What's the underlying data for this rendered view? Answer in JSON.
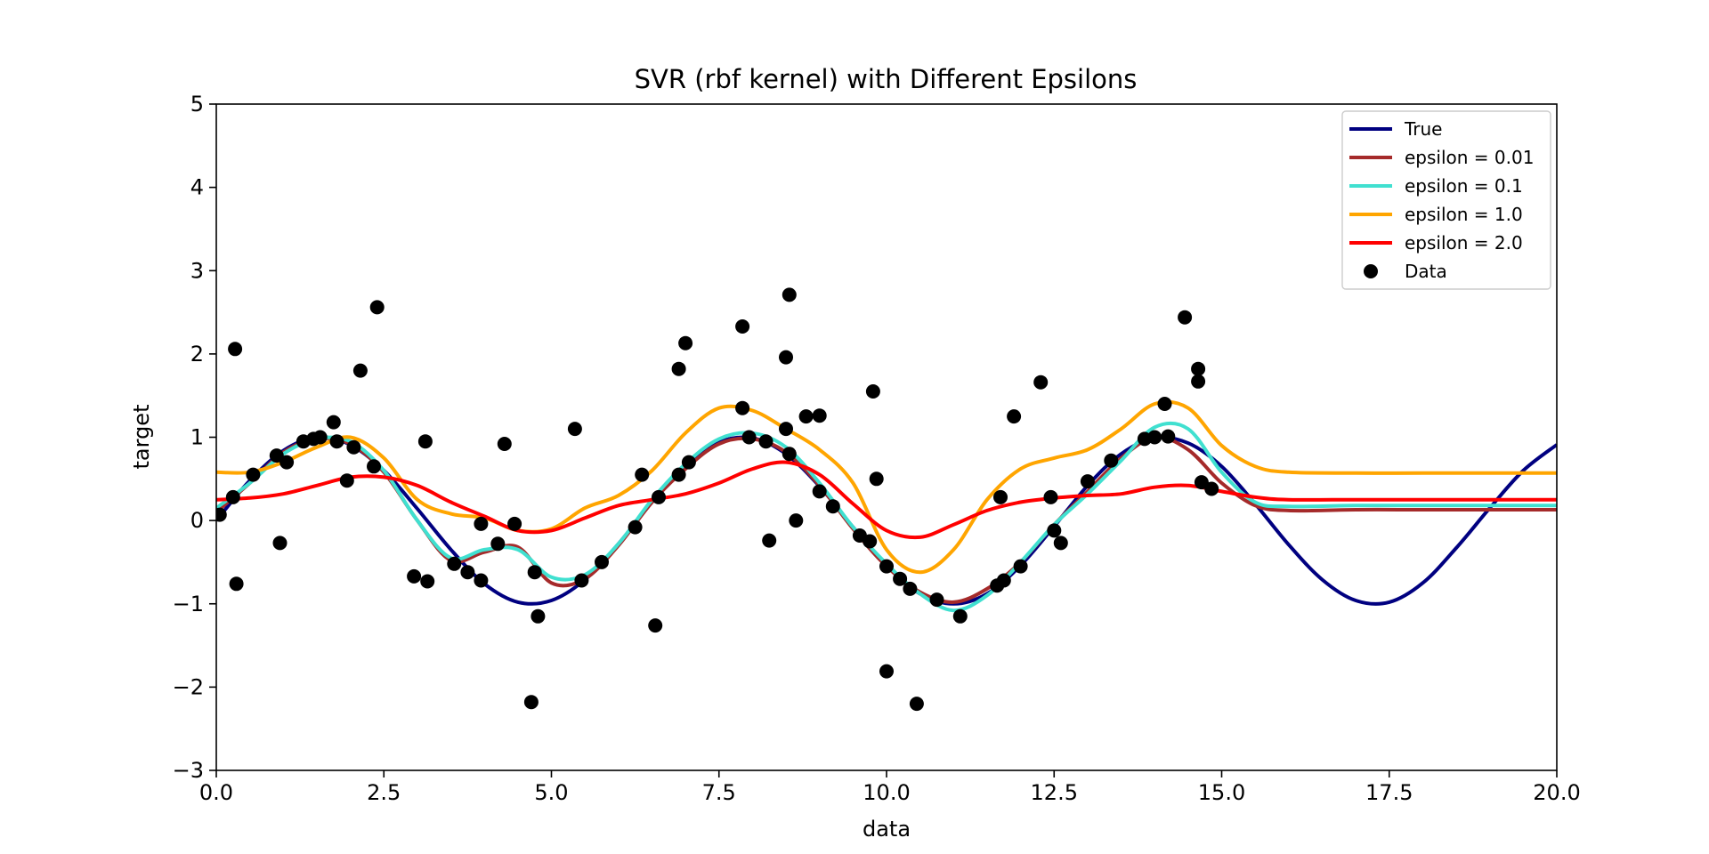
{
  "chart_data": {
    "type": "line",
    "title": "SVR (rbf kernel) with Different Epsilons",
    "xlabel": "data",
    "ylabel": "target",
    "xlim": [
      0,
      20
    ],
    "ylim": [
      -3,
      5
    ],
    "xticks": [
      0,
      2.5,
      5,
      7.5,
      10,
      12.5,
      15,
      17.5,
      20
    ],
    "xtick_labels": [
      "0.0",
      "2.5",
      "5.0",
      "7.5",
      "10.0",
      "12.5",
      "15.0",
      "17.5",
      "20.0"
    ],
    "yticks": [
      -3,
      -2,
      -1,
      0,
      1,
      2,
      3,
      4,
      5
    ],
    "ytick_labels": [
      "−3",
      "−2",
      "−1",
      "0",
      "1",
      "2",
      "3",
      "4",
      "5"
    ],
    "grid": false,
    "legend_position": "top-right",
    "series": [
      {
        "name": "True",
        "color": "#000080",
        "x": [
          0,
          0.5,
          1,
          1.5,
          2,
          2.5,
          3,
          3.5,
          4,
          4.5,
          5,
          5.5,
          6,
          6.5,
          7,
          7.5,
          8,
          8.5,
          9,
          9.5,
          10,
          10.5,
          11,
          11.5,
          12,
          12.5,
          13,
          13.5,
          14,
          14.5,
          15,
          15.5,
          16,
          16.5,
          17,
          17.5,
          18,
          18.5,
          19,
          19.5,
          20
        ],
        "y": [
          0,
          0.48,
          0.84,
          1.0,
          0.91,
          0.6,
          0.14,
          -0.35,
          -0.76,
          -0.98,
          -0.96,
          -0.71,
          -0.28,
          0.22,
          0.66,
          0.94,
          0.99,
          0.8,
          0.41,
          -0.08,
          -0.54,
          -0.88,
          -1.0,
          -0.88,
          -0.54,
          -0.07,
          0.42,
          0.8,
          0.99,
          0.93,
          0.65,
          0.2,
          -0.29,
          -0.71,
          -0.96,
          -0.98,
          -0.75,
          -0.33,
          0.15,
          0.6,
          0.91
        ]
      },
      {
        "name": "epsilon = 0.01",
        "color": "#A52A2A",
        "x": [
          0,
          0.5,
          1,
          1.5,
          2,
          2.5,
          3,
          3.5,
          4,
          4.5,
          5,
          5.5,
          6,
          6.5,
          7,
          7.5,
          8,
          8.5,
          9,
          9.5,
          10,
          10.5,
          11,
          11.5,
          12,
          12.5,
          13,
          13.5,
          14,
          14.5,
          15,
          15.5,
          16,
          17,
          18,
          19,
          20
        ],
        "y": [
          0.1,
          0.45,
          0.82,
          0.98,
          0.92,
          0.58,
          0.0,
          -0.48,
          -0.38,
          -0.32,
          -0.75,
          -0.7,
          -0.3,
          0.22,
          0.62,
          0.92,
          0.98,
          0.82,
          0.42,
          -0.1,
          -0.55,
          -0.86,
          -0.98,
          -0.82,
          -0.5,
          -0.05,
          0.35,
          0.75,
          1.0,
          0.85,
          0.45,
          0.18,
          0.12,
          0.13,
          0.13,
          0.13,
          0.13
        ]
      },
      {
        "name": "epsilon = 0.1",
        "color": "#40E0D0",
        "x": [
          0,
          0.5,
          1,
          1.5,
          2,
          2.5,
          3,
          3.5,
          4,
          4.5,
          5,
          5.5,
          6,
          6.5,
          7,
          7.5,
          8,
          8.5,
          9,
          9.5,
          10,
          10.5,
          11,
          11.5,
          12,
          12.5,
          13,
          13.5,
          14,
          14.5,
          15,
          15.5,
          16,
          17,
          18,
          19,
          20
        ],
        "y": [
          0.15,
          0.45,
          0.8,
          0.98,
          0.95,
          0.6,
          0.0,
          -0.45,
          -0.35,
          -0.35,
          -0.68,
          -0.65,
          -0.28,
          0.25,
          0.68,
          0.98,
          1.05,
          0.88,
          0.45,
          -0.08,
          -0.52,
          -0.88,
          -1.08,
          -0.9,
          -0.5,
          -0.05,
          0.32,
          0.72,
          1.12,
          1.1,
          0.58,
          0.22,
          0.17,
          0.18,
          0.18,
          0.18,
          0.18
        ]
      },
      {
        "name": "epsilon = 1.0",
        "color": "#FFA500",
        "x": [
          0,
          0.5,
          1,
          1.5,
          2,
          2.5,
          3,
          3.5,
          4,
          4.5,
          5,
          5.5,
          6,
          6.5,
          7,
          7.5,
          8,
          8.5,
          9,
          9.5,
          10,
          10.5,
          11,
          11.5,
          12,
          12.5,
          13,
          13.5,
          14,
          14.5,
          15,
          15.5,
          16,
          17,
          18,
          19,
          20
        ],
        "y": [
          0.58,
          0.58,
          0.7,
          0.88,
          1.0,
          0.75,
          0.25,
          0.08,
          0.03,
          -0.12,
          -0.1,
          0.15,
          0.3,
          0.6,
          1.05,
          1.35,
          1.32,
          1.1,
          0.85,
          0.45,
          -0.35,
          -0.62,
          -0.35,
          0.25,
          0.62,
          0.75,
          0.85,
          1.1,
          1.4,
          1.35,
          0.9,
          0.65,
          0.58,
          0.57,
          0.57,
          0.57,
          0.57
        ]
      },
      {
        "name": "epsilon = 2.0",
        "color": "#FF0000",
        "x": [
          0,
          0.5,
          1,
          1.5,
          2,
          2.5,
          3,
          3.5,
          4,
          4.5,
          5,
          5.5,
          6,
          6.5,
          7,
          7.5,
          8,
          8.5,
          9,
          9.5,
          10,
          10.5,
          11,
          11.5,
          12,
          12.5,
          13,
          13.5,
          14,
          14.5,
          15,
          15.5,
          16,
          17,
          18,
          19,
          20
        ],
        "y": [
          0.25,
          0.27,
          0.32,
          0.42,
          0.52,
          0.52,
          0.42,
          0.22,
          0.05,
          -0.12,
          -0.12,
          0.03,
          0.18,
          0.25,
          0.32,
          0.45,
          0.62,
          0.7,
          0.55,
          0.2,
          -0.12,
          -0.2,
          -0.05,
          0.12,
          0.22,
          0.27,
          0.3,
          0.32,
          0.4,
          0.42,
          0.35,
          0.28,
          0.25,
          0.25,
          0.25,
          0.25,
          0.25
        ]
      }
    ],
    "scatter": {
      "name": "Data",
      "color": "#000000",
      "points": [
        [
          0.05,
          0.07
        ],
        [
          0.25,
          0.28
        ],
        [
          0.28,
          2.06
        ],
        [
          0.3,
          -0.76
        ],
        [
          0.55,
          0.55
        ],
        [
          0.9,
          0.78
        ],
        [
          0.95,
          -0.27
        ],
        [
          1.05,
          0.7
        ],
        [
          1.3,
          0.95
        ],
        [
          1.45,
          0.98
        ],
        [
          1.55,
          1.0
        ],
        [
          1.75,
          1.18
        ],
        [
          1.8,
          0.95
        ],
        [
          1.95,
          0.48
        ],
        [
          2.05,
          0.88
        ],
        [
          2.15,
          1.8
        ],
        [
          2.35,
          0.65
        ],
        [
          2.4,
          2.56
        ],
        [
          2.95,
          -0.67
        ],
        [
          3.12,
          0.95
        ],
        [
          3.15,
          -0.73
        ],
        [
          3.55,
          -0.52
        ],
        [
          3.75,
          -0.62
        ],
        [
          3.95,
          -0.04
        ],
        [
          3.95,
          -0.72
        ],
        [
          4.2,
          -0.28
        ],
        [
          4.3,
          0.92
        ],
        [
          4.45,
          -0.04
        ],
        [
          4.7,
          -2.18
        ],
        [
          4.75,
          -0.62
        ],
        [
          4.8,
          -1.15
        ],
        [
          5.35,
          1.1
        ],
        [
          5.45,
          -0.72
        ],
        [
          5.75,
          -0.5
        ],
        [
          6.25,
          -0.08
        ],
        [
          6.35,
          0.55
        ],
        [
          6.55,
          -1.26
        ],
        [
          6.6,
          0.28
        ],
        [
          6.9,
          0.55
        ],
        [
          6.9,
          1.82
        ],
        [
          7.0,
          2.13
        ],
        [
          7.05,
          0.7
        ],
        [
          7.85,
          2.33
        ],
        [
          7.85,
          1.35
        ],
        [
          7.95,
          1.0
        ],
        [
          8.2,
          0.95
        ],
        [
          8.25,
          -0.24
        ],
        [
          8.5,
          1.1
        ],
        [
          8.5,
          1.96
        ],
        [
          8.55,
          2.71
        ],
        [
          8.55,
          0.8
        ],
        [
          8.65,
          0.0
        ],
        [
          8.8,
          1.25
        ],
        [
          9.0,
          1.26
        ],
        [
          9.0,
          0.35
        ],
        [
          9.2,
          0.17
        ],
        [
          9.6,
          -0.18
        ],
        [
          9.75,
          -0.25
        ],
        [
          9.8,
          1.55
        ],
        [
          9.85,
          0.5
        ],
        [
          10.0,
          -1.81
        ],
        [
          10.0,
          -0.55
        ],
        [
          10.2,
          -0.7
        ],
        [
          10.35,
          -0.82
        ],
        [
          10.45,
          -2.2
        ],
        [
          10.75,
          -0.95
        ],
        [
          11.1,
          -1.15
        ],
        [
          11.65,
          -0.78
        ],
        [
          11.7,
          0.28
        ],
        [
          11.75,
          -0.72
        ],
        [
          11.9,
          1.25
        ],
        [
          12.0,
          -0.55
        ],
        [
          12.3,
          1.66
        ],
        [
          12.45,
          0.28
        ],
        [
          12.5,
          -0.12
        ],
        [
          12.6,
          -0.27
        ],
        [
          13.0,
          0.47
        ],
        [
          13.35,
          0.72
        ],
        [
          13.85,
          0.98
        ],
        [
          14.0,
          1.0
        ],
        [
          14.15,
          1.4
        ],
        [
          14.2,
          1.01
        ],
        [
          14.45,
          2.44
        ],
        [
          14.65,
          1.82
        ],
        [
          14.65,
          1.67
        ],
        [
          14.7,
          0.46
        ],
        [
          14.85,
          0.38
        ]
      ]
    }
  }
}
